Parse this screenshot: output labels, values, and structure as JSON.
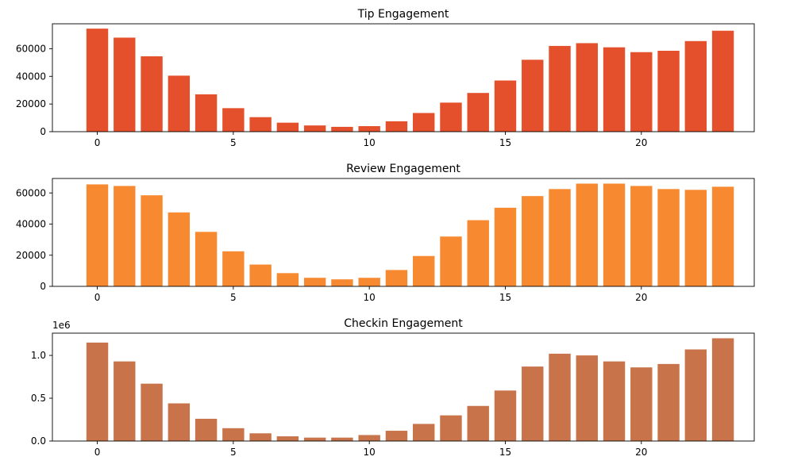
{
  "chart_data": [
    {
      "type": "bar",
      "title": "Tip Engagement",
      "xlabel": "",
      "ylabel": "",
      "x": [
        0,
        1,
        2,
        3,
        4,
        5,
        6,
        7,
        8,
        9,
        10,
        11,
        12,
        13,
        14,
        15,
        16,
        17,
        18,
        19,
        20,
        21,
        22,
        23
      ],
      "values": [
        74500,
        68000,
        54500,
        40500,
        27000,
        17000,
        10500,
        6500,
        4500,
        3500,
        4000,
        7500,
        13500,
        21000,
        28000,
        37000,
        52000,
        62000,
        64000,
        61000,
        57500,
        58500,
        65500,
        73000
      ],
      "xlim": [
        -1.65,
        24.15
      ],
      "ylim": [
        0,
        78000
      ],
      "xticks": [
        0,
        5,
        10,
        15,
        20
      ],
      "yticks": [
        0,
        20000,
        40000,
        60000
      ],
      "ytick_labels": [
        "0",
        "20000",
        "40000",
        "60000"
      ],
      "offset_text": "",
      "color": "#e4502b",
      "grid": false,
      "legend": "none"
    },
    {
      "type": "bar",
      "title": "Review Engagement",
      "xlabel": "",
      "ylabel": "",
      "x": [
        0,
        1,
        2,
        3,
        4,
        5,
        6,
        7,
        8,
        9,
        10,
        11,
        12,
        13,
        14,
        15,
        16,
        17,
        18,
        19,
        20,
        21,
        22,
        23
      ],
      "values": [
        65500,
        64500,
        58500,
        47500,
        35000,
        22500,
        14000,
        8500,
        5500,
        4500,
        5500,
        10500,
        19500,
        32000,
        42500,
        50500,
        58000,
        62500,
        66000,
        66000,
        64500,
        62500,
        62000,
        64000
      ],
      "xlim": [
        -1.65,
        24.15
      ],
      "ylim": [
        0,
        69300
      ],
      "xticks": [
        0,
        5,
        10,
        15,
        20
      ],
      "yticks": [
        0,
        20000,
        40000,
        60000
      ],
      "ytick_labels": [
        "0",
        "20000",
        "40000",
        "60000"
      ],
      "offset_text": "",
      "color": "#f78a30",
      "grid": false,
      "legend": "none"
    },
    {
      "type": "bar",
      "title": "Checkin Engagement",
      "xlabel": "",
      "ylabel": "",
      "x": [
        0,
        1,
        2,
        3,
        4,
        5,
        6,
        7,
        8,
        9,
        10,
        11,
        12,
        13,
        14,
        15,
        16,
        17,
        18,
        19,
        20,
        21,
        22,
        23
      ],
      "values": [
        1150000,
        930000,
        670000,
        440000,
        260000,
        150000,
        90000,
        55000,
        40000,
        40000,
        70000,
        120000,
        200000,
        300000,
        410000,
        590000,
        870000,
        1020000,
        1000000,
        930000,
        860000,
        900000,
        1070000,
        1200000
      ],
      "xlim": [
        -1.65,
        24.15
      ],
      "ylim": [
        0,
        1260000
      ],
      "xticks": [
        0,
        5,
        10,
        15,
        20
      ],
      "yticks": [
        0,
        500000,
        1000000
      ],
      "ytick_labels": [
        "0.0",
        "0.5",
        "1.0"
      ],
      "offset_text": "1e6",
      "color": "#c8734a",
      "grid": false,
      "legend": "none"
    }
  ]
}
